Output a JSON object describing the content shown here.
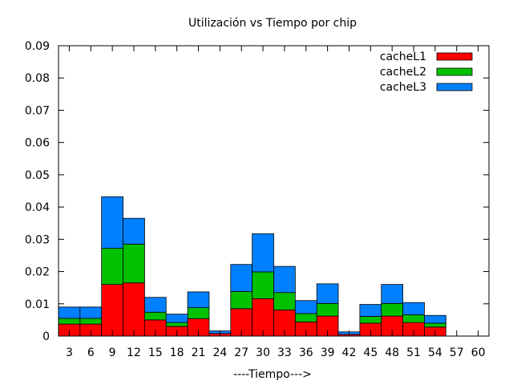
{
  "chart_data": {
    "type": "bar",
    "stacked": true,
    "title": "Utilización vs Tiempo por chip",
    "xlabel": "----Tiempo--->",
    "ylabel": "",
    "ylim": [
      0,
      0.09
    ],
    "yticks": [
      "0",
      "0.01",
      "0.02",
      "0.03",
      "0.04",
      "0.05",
      "0.06",
      "0.07",
      "0.08",
      "0.09"
    ],
    "categories": [
      "3",
      "6",
      "9",
      "12",
      "15",
      "18",
      "21",
      "24",
      "27",
      "30",
      "33",
      "36",
      "39",
      "42",
      "45",
      "48",
      "51",
      "54",
      "57",
      "60"
    ],
    "legend_position": "top-right",
    "series": [
      {
        "name": "cacheL1",
        "color": "#ff0000",
        "values": [
          0.0037,
          0.0037,
          0.016,
          0.0165,
          0.005,
          0.003,
          0.0054,
          0.0013,
          0.0085,
          0.0116,
          0.0081,
          0.0044,
          0.0062,
          0.0009,
          0.004,
          0.0062,
          0.0042,
          0.0028,
          0,
          0
        ]
      },
      {
        "name": "cacheL2",
        "color": "#00c000",
        "values": [
          0.0055,
          0.0055,
          0.0272,
          0.0285,
          0.0074,
          0.0042,
          0.0088,
          0.0008,
          0.0138,
          0.0199,
          0.0135,
          0.007,
          0.0101,
          0.0005,
          0.0061,
          0.0101,
          0.0066,
          0.004,
          0,
          0
        ]
      },
      {
        "name": "cacheL3",
        "color": "#0080ff",
        "values": [
          0.009,
          0.009,
          0.0432,
          0.0365,
          0.012,
          0.0068,
          0.0137,
          0.0016,
          0.0222,
          0.0317,
          0.0216,
          0.011,
          0.0162,
          0.0013,
          0.0098,
          0.016,
          0.0104,
          0.0064,
          0,
          0
        ]
      }
    ]
  }
}
